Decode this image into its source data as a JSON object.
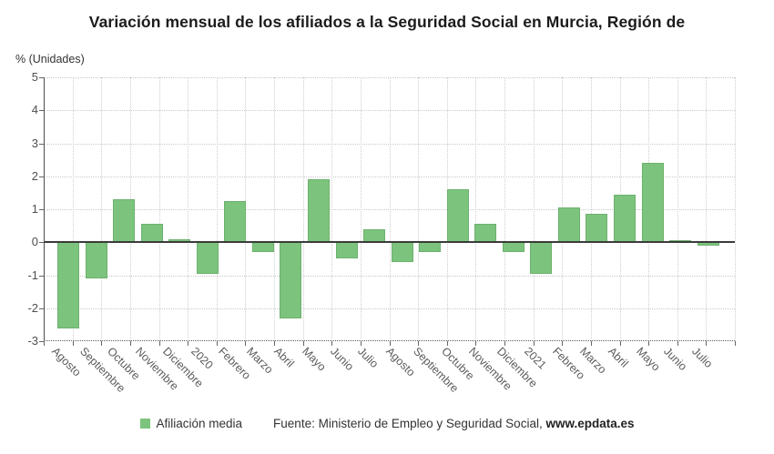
{
  "chart_data": {
    "type": "bar",
    "title": "Variación mensual de los afiliados a la Seguridad Social en Murcia, Región de",
    "ylabel": "% (Unidades)",
    "xlabel": "",
    "ylim": [
      -3,
      5
    ],
    "yticks": [
      5,
      4,
      3,
      2,
      1,
      0,
      -1,
      -2,
      -3
    ],
    "grid": true,
    "legend_position": "bottom",
    "color": "#7cc47d",
    "categories": [
      "Agosto",
      "Septiembre",
      "Octubre",
      "Noviembre",
      "Diciembre",
      "2020",
      "Febrero",
      "Marzo",
      "Abril",
      "Mayo",
      "Junio",
      "Julio",
      "Agosto",
      "Septiembre",
      "Octubre",
      "Noviembre",
      "Diciembre",
      "2021",
      "Febrero",
      "Marzo",
      "Abril",
      "Mayo",
      "Junio",
      "Julio"
    ],
    "series": [
      {
        "name": "Afiliación media",
        "values": [
          -2.6,
          -1.1,
          1.3,
          0.55,
          0.1,
          -0.95,
          1.25,
          -0.3,
          -2.3,
          1.9,
          -0.5,
          0.4,
          -0.6,
          -0.3,
          1.6,
          0.55,
          -0.3,
          -0.95,
          1.05,
          0.85,
          1.45,
          2.4,
          0.05,
          -0.1
        ]
      }
    ]
  },
  "footer": {
    "source_prefix": "Fuente: Ministerio de Empleo y Seguridad Social, ",
    "source_link": "www.epdata.es"
  }
}
